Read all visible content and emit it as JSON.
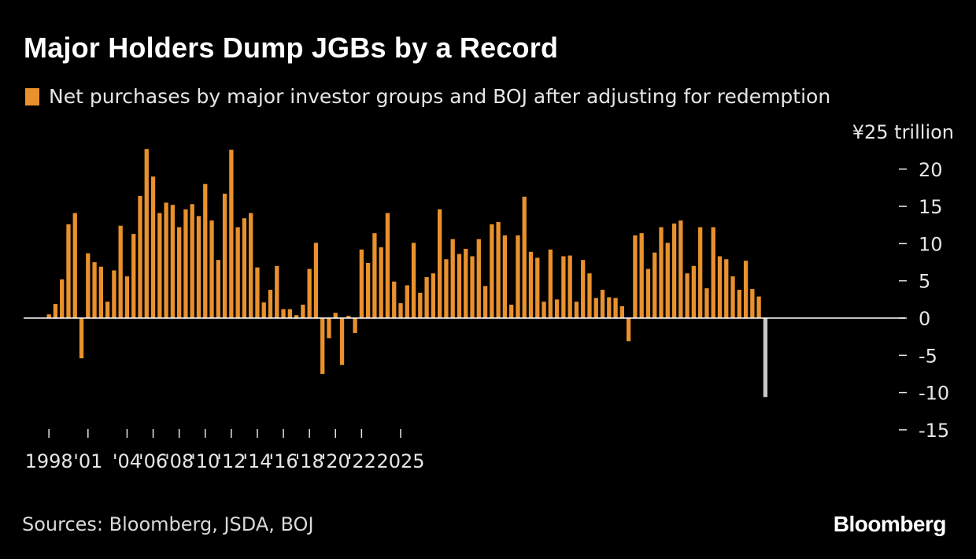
{
  "title": "Major Holders Dump JGBs by a Record",
  "legend": {
    "label": "Net purchases by major investor groups and BOJ after adjusting for redemption",
    "color": "#E8912D"
  },
  "sources": "Sources: Bloomberg, JSDA, BOJ",
  "brand": "Bloomberg",
  "colors": {
    "background": "#000000",
    "bar": "#E8912D",
    "highlight_bar": "#C8C8C8",
    "zero_line": "#ffffff"
  },
  "chart_data": {
    "type": "bar",
    "frequency": "half-year",
    "y_unit_label": "¥25 trillion",
    "ylim": [
      -15,
      25
    ],
    "y_ticks": [
      {
        "value": 20,
        "label": "20"
      },
      {
        "value": 15,
        "label": "15"
      },
      {
        "value": 10,
        "label": "10"
      },
      {
        "value": 5,
        "label": "5"
      },
      {
        "value": 0,
        "label": "0"
      },
      {
        "value": -5,
        "label": "-5"
      },
      {
        "value": -10,
        "label": "-10"
      },
      {
        "value": -15,
        "label": "-15"
      }
    ],
    "x_ticks": [
      {
        "year": 1998,
        "label": "1998"
      },
      {
        "year": 2001,
        "label": "'01"
      },
      {
        "year": 2004,
        "label": "'04"
      },
      {
        "year": 2006,
        "label": "'06"
      },
      {
        "year": 2008,
        "label": "'08"
      },
      {
        "year": 2010,
        "label": "'10"
      },
      {
        "year": 2012,
        "label": "'12"
      },
      {
        "year": 2014,
        "label": "'14"
      },
      {
        "year": 2016,
        "label": "'16"
      },
      {
        "year": 2018,
        "label": "'18"
      },
      {
        "year": 2020,
        "label": "'20"
      },
      {
        "year": 2022,
        "label": "'22"
      },
      {
        "year": 2025,
        "label": "2025"
      }
    ],
    "series": [
      {
        "values": [
          0.5,
          1.9,
          5.2,
          12.6,
          14.1,
          -5.4,
          8.7,
          7.5,
          6.9,
          2.2,
          6.4,
          12.4,
          5.6,
          11.3,
          16.4,
          22.7,
          19.0,
          14.1,
          15.5,
          15.2,
          12.2,
          14.6,
          15.3,
          13.7,
          18.0,
          13.1,
          7.8,
          16.7,
          22.6,
          12.2,
          13.4,
          14.1,
          6.8,
          2.1,
          3.8,
          7.0,
          1.2,
          1.2,
          0.4,
          1.8,
          6.6,
          10.1,
          -7.5,
          -2.7,
          0.7,
          -6.3,
          0.3,
          -2.0,
          9.2,
          7.4,
          11.4,
          9.5,
          14.1,
          4.9,
          2.0,
          4.4,
          10.1,
          3.4,
          5.5,
          6.0,
          14.6,
          7.9,
          10.6,
          8.6,
          9.3,
          8.3,
          10.6,
          4.3,
          12.6,
          12.9,
          11.1,
          1.8,
          11.1,
          16.3,
          8.9,
          8.1,
          2.2,
          9.2,
          2.5,
          8.3,
          8.4,
          2.2,
          7.8,
          6.0,
          2.7,
          3.8,
          2.8,
          2.7,
          1.6,
          -3.1,
          11.1,
          11.4,
          6.6,
          8.8,
          12.2,
          10.1,
          12.7,
          13.1,
          6.0,
          7.0,
          12.2,
          4.0,
          12.2,
          8.3,
          7.9,
          5.6,
          3.8,
          7.7,
          3.9,
          2.9,
          -10.6
        ]
      }
    ]
  }
}
